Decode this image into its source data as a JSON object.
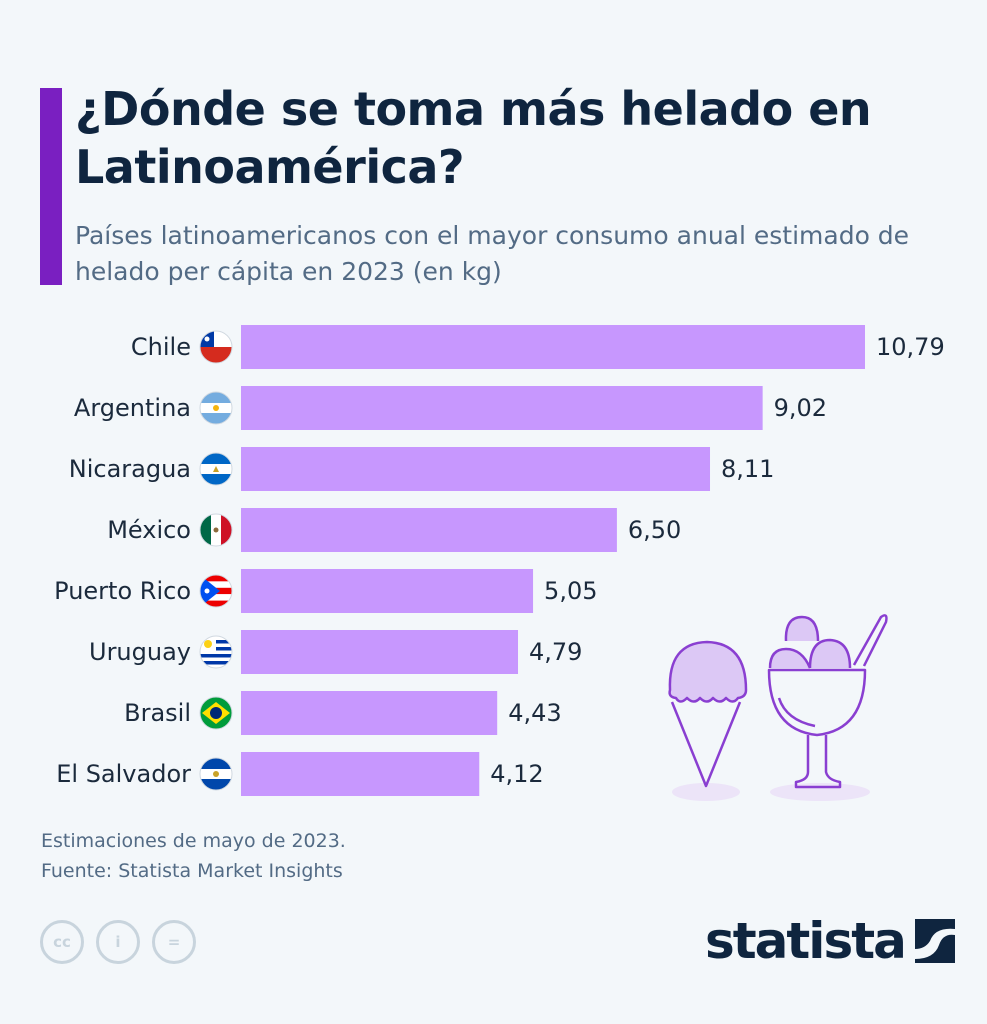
{
  "title": "¿Dónde se toma más helado en Latinoamérica?",
  "subtitle": "Países latinoamericanos con el mayor consumo anual estimado de helado per cápita en 2023 (en kg)",
  "notes": [
    "Estimaciones de mayo de 2023.",
    "Fuente: Statista Market Insights"
  ],
  "brand": "statista",
  "license_icons": [
    "cc-icon",
    "attribution-icon",
    "no-derivatives-icon"
  ],
  "colors": {
    "bar": "#c797fe",
    "accent": "#7a1fc1",
    "title": "#0f253f"
  },
  "chart_data": {
    "type": "bar",
    "orientation": "horizontal",
    "title": "¿Dónde se toma más helado en Latinoamérica?",
    "categories": [
      "Chile",
      "Argentina",
      "Nicaragua",
      "México",
      "Puerto Rico",
      "Uruguay",
      "Brasil",
      "El Salvador"
    ],
    "values": [
      10.79,
      9.02,
      8.11,
      6.5,
      5.05,
      4.79,
      4.43,
      4.12
    ],
    "value_labels": [
      "10,79",
      "9,02",
      "8,11",
      "6,50",
      "5,05",
      "4,79",
      "4,43",
      "4,12"
    ],
    "flags": [
      "chile",
      "argentina",
      "nicaragua",
      "mexico",
      "puerto-rico",
      "uruguay",
      "brasil",
      "el-salvador"
    ],
    "xlim": [
      0,
      10.79
    ],
    "grid": false,
    "legend": "none"
  }
}
